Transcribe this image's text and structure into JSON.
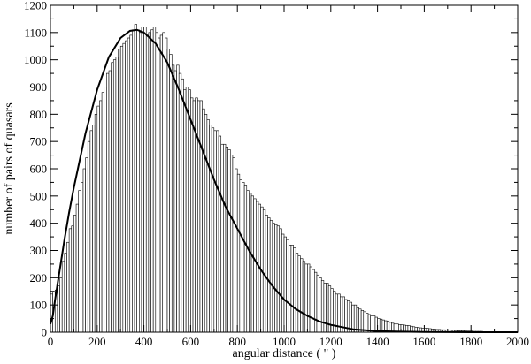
{
  "chart_data": {
    "type": "bar",
    "title": "",
    "xlabel": "angular distance ( \" )",
    "ylabel": "number of pairs of quasars",
    "xlim": [
      0,
      2000
    ],
    "ylim": [
      0,
      1200
    ],
    "x_ticks": [
      0,
      200,
      400,
      600,
      800,
      1000,
      1200,
      1400,
      1600,
      1800,
      2000
    ],
    "y_ticks": [
      0,
      100,
      200,
      300,
      400,
      500,
      600,
      700,
      800,
      900,
      1000,
      1100,
      1200
    ],
    "grid": false,
    "legend": "none",
    "bin_width": 10,
    "series": [
      {
        "type": "histogram",
        "x_start": 0,
        "bin_width": 10,
        "values": [
          140,
          150,
          155,
          170,
          200,
          260,
          290,
          330,
          380,
          390,
          430,
          470,
          520,
          550,
          600,
          640,
          700,
          740,
          760,
          800,
          830,
          850,
          880,
          900,
          950,
          960,
          990,
          1000,
          1010,
          1040,
          1050,
          1060,
          1070,
          1080,
          1090,
          1110,
          1130,
          1110,
          1100,
          1120,
          1120,
          1090,
          1100,
          1110,
          1120,
          1100,
          1080,
          1090,
          1100,
          1080,
          1040,
          1020,
          980,
          960,
          980,
          950,
          930,
          890,
          900,
          890,
          860,
          850,
          860,
          850,
          850,
          820,
          800,
          780,
          760,
          750,
          740,
          740,
          720,
          690,
          690,
          680,
          670,
          650,
          640,
          600,
          580,
          560,
          550,
          540,
          520,
          510,
          500,
          490,
          480,
          470,
          460,
          450,
          430,
          420,
          410,
          400,
          395,
          390,
          380,
          360,
          350,
          340,
          320,
          320,
          310,
          290,
          280,
          270,
          260,
          250,
          250,
          240,
          230,
          220,
          210,
          200,
          190,
          180,
          180,
          170,
          160,
          150,
          140,
          140,
          130,
          130,
          120,
          115,
          110,
          100,
          100,
          90,
          85,
          80,
          75,
          70,
          65,
          60,
          60,
          55,
          50,
          48,
          45,
          42,
          40,
          36,
          33,
          30,
          30,
          28,
          27,
          26,
          25,
          24,
          22,
          20,
          18,
          17,
          16,
          15,
          15,
          14,
          13,
          12,
          11,
          10,
          10,
          9,
          9,
          8,
          8,
          7,
          7,
          6,
          6,
          5,
          5,
          5,
          4,
          4,
          4,
          3,
          3,
          3,
          3,
          2,
          2,
          2,
          2,
          2,
          2,
          1,
          1,
          1,
          1,
          1,
          1,
          1,
          1,
          1,
          1,
          1,
          1,
          1,
          1,
          1,
          1,
          1,
          1
        ]
      },
      {
        "type": "line",
        "x": [
          0,
          10,
          20,
          40,
          60,
          80,
          100,
          150,
          200,
          250,
          300,
          340,
          370,
          400,
          450,
          500,
          550,
          600,
          650,
          700,
          750,
          800,
          850,
          900,
          950,
          1000,
          1050,
          1100,
          1150,
          1200,
          1300,
          1400,
          1500,
          1600,
          1800,
          2000
        ],
        "values": [
          30,
          60,
          120,
          230,
          340,
          440,
          530,
          730,
          890,
          1010,
          1080,
          1106,
          1110,
          1100,
          1060,
          990,
          890,
          780,
          670,
          560,
          460,
          380,
          300,
          230,
          170,
          120,
          85,
          60,
          40,
          27,
          10,
          4,
          2,
          1,
          0,
          0
        ]
      }
    ]
  }
}
